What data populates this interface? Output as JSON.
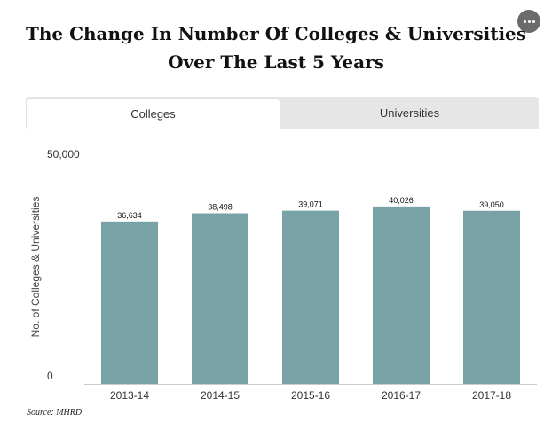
{
  "title_line1": "The Change In Number Of Colleges & Universities",
  "title_line2": "Over The Last 5 Years",
  "menu_icon": "more-options-icon",
  "tabs": [
    {
      "label": "Colleges",
      "active": true
    },
    {
      "label": "Universities",
      "active": false
    }
  ],
  "source": "Source: MHRD",
  "colors": {
    "bar": "#79a2a6",
    "axis": "#cccccc",
    "menu_button": "#6b6b6b"
  },
  "chart_data": {
    "type": "bar",
    "categories": [
      "2013-14",
      "2014-15",
      "2015-16",
      "2016-17",
      "2017-18"
    ],
    "values": [
      36634,
      38498,
      39071,
      40026,
      39050
    ],
    "value_labels": [
      "36,634",
      "38,498",
      "39,071",
      "40,026",
      "39,050"
    ],
    "ylabel": "No. of Colleges & Universities",
    "ylim": [
      0,
      50000
    ],
    "y_tick_labels": [
      "0",
      "50,000"
    ],
    "grid": false,
    "legend": "none"
  }
}
